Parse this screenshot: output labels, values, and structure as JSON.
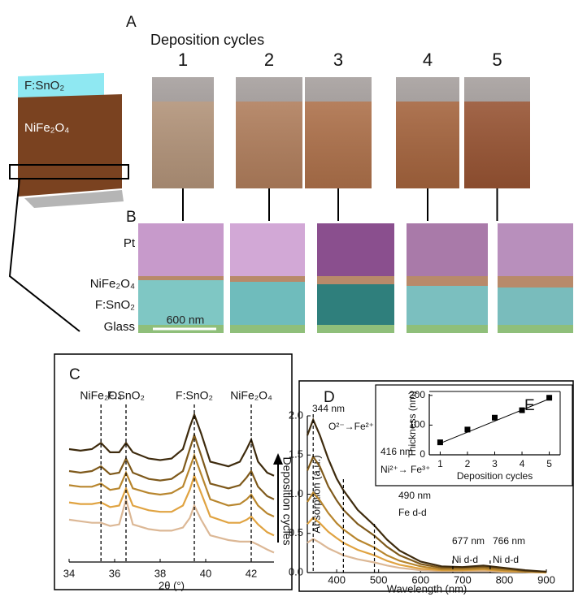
{
  "figure": {
    "panel_a": {
      "label": "A",
      "title": "Deposition cycles",
      "samples": [
        "1",
        "2",
        "3",
        "4",
        "5"
      ]
    },
    "panel_b": {
      "label": "B",
      "layers": [
        "Pt",
        "NiFe₂O₄",
        "F:SnO₂",
        "Glass"
      ],
      "scale_bar": "600 nm"
    },
    "schematic": {
      "layers": [
        "F:SnO₂",
        "NiFe₂O₄"
      ]
    }
  },
  "chart_data": [
    {
      "type": "line",
      "panel": "C",
      "xlabel": "2θ (°)",
      "xlim": [
        34,
        43
      ],
      "xticks": [
        34,
        36,
        38,
        40,
        42
      ],
      "ylim": [
        0,
        115
      ],
      "x": [
        34,
        34.5,
        35,
        35.4,
        35.8,
        36.2,
        36.5,
        36.8,
        37.5,
        38,
        38.5,
        39,
        39.3,
        39.5,
        39.8,
        40.2,
        41,
        41.5,
        41.8,
        42,
        42.3,
        42.7,
        43
      ],
      "series": [
        {
          "color": "#dcb896",
          "values": [
            27,
            26,
            25,
            25,
            23,
            24,
            40,
            24,
            21,
            20,
            20,
            22,
            28,
            36,
            27,
            17,
            14,
            13,
            13,
            13,
            11,
            8,
            6
          ]
        },
        {
          "color": "#e0a341",
          "values": [
            38,
            37,
            37,
            38,
            35,
            36,
            47,
            36,
            33,
            32,
            32,
            36,
            46,
            55,
            44,
            29,
            25,
            25,
            27,
            29,
            24,
            19,
            17
          ]
        },
        {
          "color": "#b8862e",
          "values": [
            49,
            48,
            48,
            50,
            46,
            47,
            57,
            47,
            44,
            43,
            44,
            48,
            60,
            68,
            56,
            40,
            36,
            37,
            40,
            43,
            36,
            31,
            29
          ]
        },
        {
          "color": "#7f5a1c",
          "values": [
            58,
            57,
            58,
            61,
            56,
            57,
            66,
            57,
            53,
            52,
            53,
            58,
            72,
            81,
            68,
            50,
            47,
            49,
            54,
            58,
            48,
            42,
            40
          ]
        },
        {
          "color": "#3e2b0e",
          "values": [
            72,
            71,
            72,
            76,
            70,
            70,
            76,
            70,
            66,
            65,
            66,
            72,
            86,
            94,
            82,
            64,
            61,
            64,
            72,
            78,
            64,
            57,
            55
          ]
        }
      ],
      "annotations": [
        {
          "x": 35.4,
          "label": "NiFe₂O₄"
        },
        {
          "x": 36.5,
          "label": "F:SnO₂"
        },
        {
          "x": 39.5,
          "label": "F:SnO₂"
        },
        {
          "x": 42,
          "label": "NiFe₂O₄"
        }
      ],
      "arrow_label": "Deposition cycles"
    },
    {
      "type": "line",
      "panel": "D",
      "xlabel": "Wavelength (nm)",
      "ylabel": "Absorption (a.u.)",
      "xlim": [
        330,
        900
      ],
      "xticks": [
        400,
        500,
        600,
        700,
        800,
        900
      ],
      "ylim": [
        0,
        2
      ],
      "yticks": [
        {
          "value": 0,
          "label": "0.0"
        },
        0.5,
        {
          "value": 1,
          "label": "1.0"
        },
        1.5,
        {
          "value": 2,
          "label": "2.0"
        }
      ],
      "x": [
        330,
        344,
        360,
        380,
        400,
        416,
        450,
        490,
        520,
        550,
        600,
        650,
        700,
        750,
        800,
        850,
        900
      ],
      "series": [
        {
          "color": "#dcb896",
          "values": [
            0.38,
            0.43,
            0.38,
            0.31,
            0.26,
            0.22,
            0.17,
            0.13,
            0.09,
            0.06,
            0.03,
            0.02,
            0.02,
            0.02,
            0.01,
            0.01,
            0
          ]
        },
        {
          "color": "#e0a341",
          "values": [
            0.62,
            0.7,
            0.63,
            0.52,
            0.44,
            0.38,
            0.29,
            0.22,
            0.15,
            0.1,
            0.05,
            0.03,
            0.03,
            0.04,
            0.02,
            0.01,
            0
          ]
        },
        {
          "color": "#b8862e",
          "values": [
            0.9,
            1.02,
            0.92,
            0.76,
            0.63,
            0.55,
            0.42,
            0.32,
            0.22,
            0.15,
            0.08,
            0.04,
            0.04,
            0.05,
            0.03,
            0.02,
            0.01
          ]
        },
        {
          "color": "#7f5a1c",
          "values": [
            1.3,
            1.48,
            1.35,
            1.1,
            0.92,
            0.8,
            0.62,
            0.47,
            0.33,
            0.22,
            0.11,
            0.06,
            0.06,
            0.07,
            0.05,
            0.02,
            0.01
          ]
        },
        {
          "color": "#3e2b0e",
          "values": [
            1.75,
            1.95,
            1.75,
            1.45,
            1.2,
            1.05,
            0.8,
            0.6,
            0.42,
            0.28,
            0.14,
            0.08,
            0.07,
            0.09,
            0.06,
            0.03,
            0.01
          ]
        }
      ],
      "annotations": [
        {
          "x": 344,
          "label": "344 nm",
          "note": "O²⁻→Fe²⁺"
        },
        {
          "x": 416,
          "label": "416 nm",
          "note": "Ni²⁺→ Fe³⁺"
        },
        {
          "x": 490,
          "label": "490 nm",
          "note": "Fe d-d"
        },
        {
          "x": 677,
          "label": "677 nm",
          "note": "Ni d-d"
        },
        {
          "x": 766,
          "label": "766 nm",
          "note": "Ni d-d"
        }
      ]
    },
    {
      "type": "scatter",
      "panel": "E",
      "xlabel": "Deposition cycles",
      "ylabel": "Thickness (nm)",
      "xlim": [
        0.6,
        5.4
      ],
      "xticks": [
        1,
        2,
        3,
        4,
        5
      ],
      "ylim": [
        0,
        205
      ],
      "yticks": [
        0,
        100,
        200
      ],
      "x": [
        1,
        2,
        3,
        4,
        5
      ],
      "values": [
        42,
        85,
        125,
        150,
        192
      ],
      "color": "#000000",
      "fit": {
        "x": [
          0.9,
          5.1
        ],
        "values": [
          35,
          192
        ]
      }
    }
  ]
}
